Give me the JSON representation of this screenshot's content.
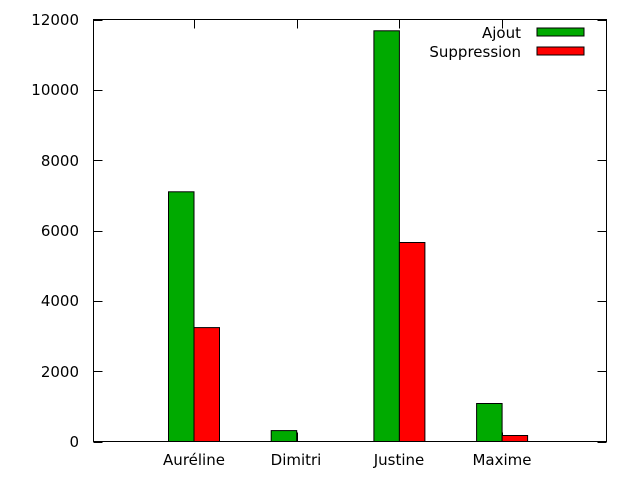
{
  "chart_data": {
    "type": "bar",
    "title": "",
    "xlabel": "",
    "ylabel": "",
    "categories": [
      "Auréline",
      "Dimitri",
      "Justine",
      "Maxime"
    ],
    "series": [
      {
        "name": "Ajout",
        "color": "#00aa00",
        "values": [
          7100,
          310,
          11680,
          1080
        ]
      },
      {
        "name": "Suppression",
        "color": "#ff0000",
        "values": [
          3240,
          0,
          5660,
          170
        ]
      }
    ],
    "ylim": [
      0,
      12000
    ],
    "yticks": [
      "0",
      "2000",
      "4000",
      "6000",
      "8000",
      "10000",
      "12000"
    ],
    "grid": false,
    "legend_position": "top-right"
  }
}
